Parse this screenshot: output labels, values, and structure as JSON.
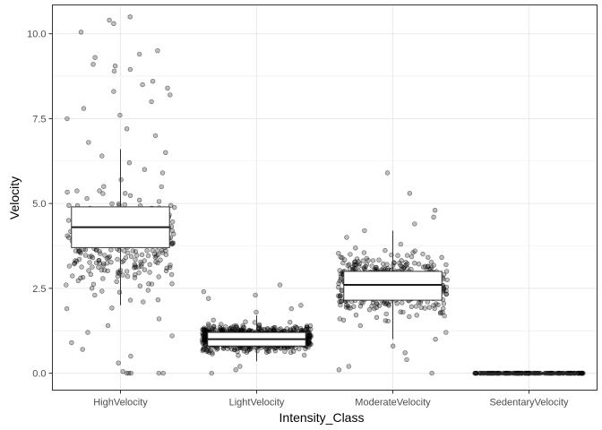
{
  "chart_data": {
    "type": "box",
    "xlabel": "Intensity_Class",
    "ylabel": "Velocity",
    "ylim": [
      -0.5,
      10.85
    ],
    "yticks": [
      0.0,
      2.5,
      5.0,
      7.5,
      10.0
    ],
    "ytick_labels": [
      "0.0",
      "2.5",
      "5.0",
      "7.5",
      "10.0"
    ],
    "grid": true,
    "legend": "none",
    "overlay": "jittered points",
    "categories": [
      "HighVelocity",
      "LightVelocity",
      "ModerateVelocity",
      "SedentaryVelocity"
    ],
    "boxes": [
      {
        "category": "HighVelocity",
        "whisker_low": 2.0,
        "q1": 3.7,
        "median": 4.3,
        "q3": 4.9,
        "whisker_high": 6.6
      },
      {
        "category": "LightVelocity",
        "whisker_low": 0.35,
        "q1": 0.8,
        "median": 1.0,
        "q3": 1.2,
        "whisker_high": 1.7
      },
      {
        "category": "ModerateVelocity",
        "whisker_low": 1.0,
        "q1": 2.15,
        "median": 2.6,
        "q3": 3.0,
        "whisker_high": 4.2
      },
      {
        "category": "SedentaryVelocity",
        "whisker_low": 0.0,
        "q1": 0.0,
        "median": 0.0,
        "q3": 0.0,
        "whisker_high": 0.0
      }
    ],
    "points": [
      {
        "category": "HighVelocity",
        "values": [
          10.5,
          10.4,
          10.3,
          10.05,
          9.5,
          9.4,
          9.3,
          9.1,
          9.05,
          8.95,
          8.9,
          8.6,
          8.5,
          8.4,
          8.3,
          8.2,
          8.0,
          7.8,
          7.6,
          7.5,
          7.2,
          7.0,
          6.8,
          6.5,
          6.4,
          6.2,
          6.0,
          5.9,
          5.7,
          5.5,
          5.3,
          5.1,
          4.1,
          3.4,
          3.2,
          3.0,
          2.9,
          2.7,
          2.5,
          2.3,
          2.1,
          1.9,
          1.6,
          1.4,
          1.2,
          1.1,
          0.9,
          0.7,
          0.5,
          0.3,
          0.05,
          0.0,
          0.0,
          0.0,
          0.0,
          0.0
        ]
      },
      {
        "category": "LightVelocity",
        "values": [
          2.6,
          2.4,
          2.3,
          2.2,
          2.0,
          1.9,
          1.8,
          0.2,
          0.1,
          0.0
        ]
      },
      {
        "category": "ModerateVelocity",
        "values": [
          5.9,
          5.3,
          4.8,
          4.6,
          4.4,
          4.2,
          4.0,
          3.8,
          3.6,
          3.4,
          3.2,
          1.8,
          1.6,
          1.4,
          1.2,
          1.0,
          0.8,
          0.6,
          0.4,
          0.2,
          0.1,
          0.0
        ]
      },
      {
        "category": "SedentaryVelocity",
        "values": [
          0.0,
          0.0,
          0.0,
          0.0,
          0.0
        ]
      }
    ]
  }
}
